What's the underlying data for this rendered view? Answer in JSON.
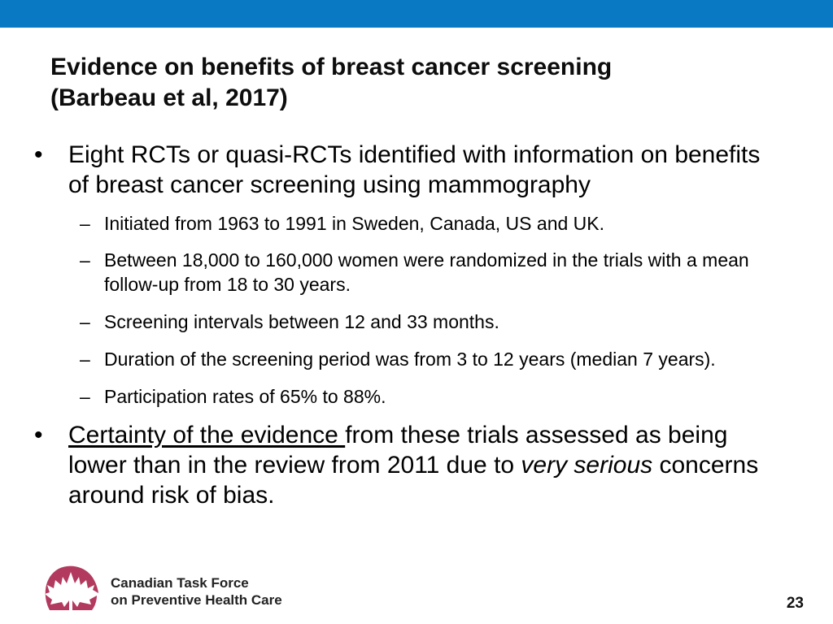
{
  "title": {
    "line1": "Evidence on benefits of breast cancer screening",
    "line2": "(Barbeau et al, 2017)"
  },
  "bullets": {
    "marker": "•",
    "dash": "–",
    "b1_text": "Eight RCTs or quasi-RCTs identified with information on benefits of breast cancer screening using mammography",
    "sub1": "Initiated from 1963 to 1991 in Sweden, Canada, US and UK.",
    "sub2": "Between 18,000 to 160,000 women were randomized in the trials with a mean follow-up from 18 to 30 years.",
    "sub3": "Screening intervals between 12 and 33 months.",
    "sub4": "Duration of the screening period was from 3 to 12 years (median 7 years).",
    "sub5": "Participation rates of 65% to 88%.",
    "b2_part1": "Certainty of the evidence ",
    "b2_part2": "from these trials assessed as being lower than in the review from 2011 due to ",
    "b2_part3": "very serious",
    "b2_part4": " concerns around risk of bias."
  },
  "footer": {
    "org_line1": "Canadian Task Force",
    "org_line2": "on Preventive Health Care",
    "page_number": "23",
    "logo_icon": "maple-leaf-icon"
  },
  "colors": {
    "top_bar": "#0a79c4",
    "logo": "#b33a5f"
  }
}
